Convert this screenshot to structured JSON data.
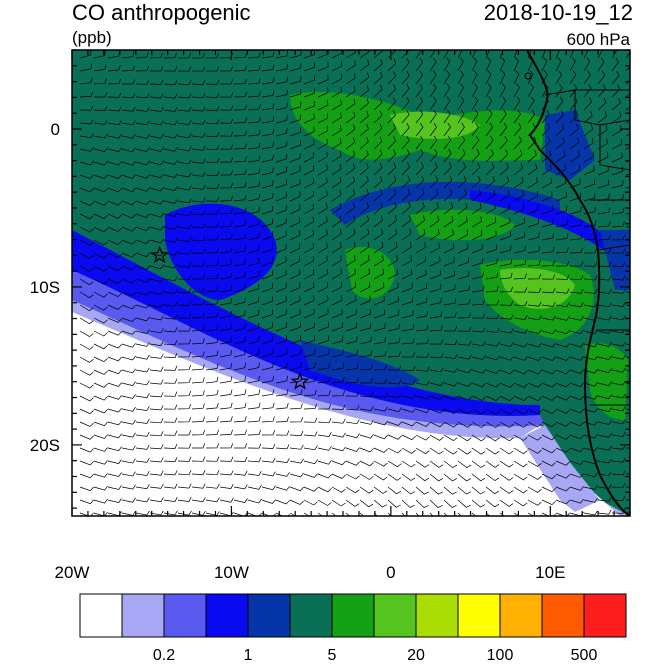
{
  "header": {
    "title": "CO anthropogenic",
    "units": "(ppb)",
    "datetime": "2018-10-19_12",
    "level": "600 hPa"
  },
  "axes": {
    "x_ticks": [
      {
        "label": "20W",
        "value": -20
      },
      {
        "label": "10W",
        "value": -10
      },
      {
        "label": "0",
        "value": 0
      },
      {
        "label": "10E",
        "value": 10
      }
    ],
    "y_ticks": [
      {
        "label": "0",
        "value": 0
      },
      {
        "label": "10S",
        "value": -10
      },
      {
        "label": "20S",
        "value": -20
      }
    ],
    "lon_range": [
      -20,
      15
    ],
    "lat_range": [
      -24.5,
      5
    ]
  },
  "markers": [
    {
      "name": "star-marker-1",
      "lon": -14.5,
      "lat": -8
    },
    {
      "name": "star-marker-2",
      "lon": -5.7,
      "lat": -16
    }
  ],
  "colorbar": {
    "colors": [
      "#ffffff",
      "#a7a7f5",
      "#5a5af0",
      "#0a0af0",
      "#0535a8",
      "#0a7055",
      "#14a014",
      "#55c41e",
      "#aadc05",
      "#ffff00",
      "#ffb000",
      "#ff5a00",
      "#ff1e1e"
    ],
    "labels": [
      {
        "text": "0.2",
        "boundary": 2
      },
      {
        "text": "1",
        "boundary": 4
      },
      {
        "text": "5",
        "boundary": 6
      },
      {
        "text": "20",
        "boundary": 8
      },
      {
        "text": "100",
        "boundary": 10
      },
      {
        "text": "500",
        "boundary": 12
      }
    ]
  }
}
